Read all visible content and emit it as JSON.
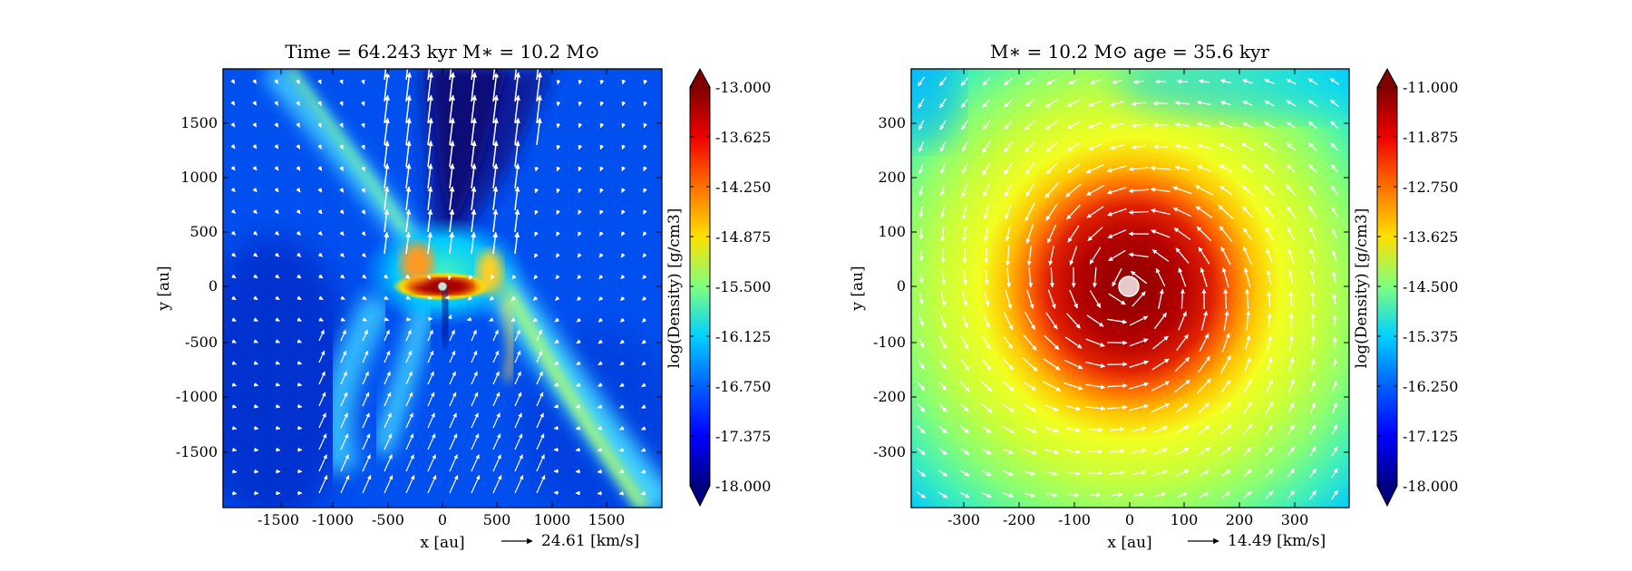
{
  "chart_data": [
    {
      "type": "heatmap",
      "title": "Time = 64.243 kyr    M∗ = 10.2 M⊙",
      "xlabel": "x [au]",
      "ylabel": "y [au]",
      "xlim": [
        -2000,
        2000
      ],
      "ylim": [
        -2000,
        2000
      ],
      "xticks": [
        -1500,
        -1000,
        -500,
        0,
        500,
        1000,
        1500
      ],
      "yticks": [
        1500,
        1000,
        500,
        0,
        -500,
        -1000,
        -1500
      ],
      "xtick_labels": [
        "-1500",
        "-1000",
        "-500",
        "0",
        "500",
        "1000",
        "1500"
      ],
      "ytick_labels": [
        "1500",
        "1000",
        "500",
        "0",
        "-500",
        "-1000",
        "-1500"
      ],
      "colorbar_label": "log(Density) [g/cm3]",
      "colorbar_range": [
        -18.0,
        -13.0
      ],
      "colorbar_ticks": [
        "-13.000",
        "-13.625",
        "-14.250",
        "-14.875",
        "-15.500",
        "-16.125",
        "-16.750",
        "-17.375",
        "-18.000"
      ],
      "reference_arrow_label": "24.61 [km/s]",
      "reference_speed_kms": 24.61,
      "structure": "bipolar outflow cavity along +y, dense disk at center, diagonal filaments",
      "grid": false
    },
    {
      "type": "heatmap",
      "title": "M∗ = 10.2 M⊙          age = 35.6 kyr",
      "xlabel": "x [au]",
      "ylabel": "y [au]",
      "xlim": [
        -400,
        400
      ],
      "ylim": [
        -400,
        400
      ],
      "xticks": [
        -300,
        -200,
        -100,
        0,
        100,
        200,
        300
      ],
      "yticks": [
        300,
        200,
        100,
        0,
        -100,
        -200,
        -300
      ],
      "xtick_labels": [
        "-300",
        "-200",
        "-100",
        "0",
        "100",
        "200",
        "300"
      ],
      "ytick_labels": [
        "300",
        "200",
        "100",
        "0",
        "-100",
        "-200",
        "-300"
      ],
      "colorbar_label": "log(Density) [g/cm3]",
      "colorbar_range": [
        -18.0,
        -11.0
      ],
      "colorbar_ticks": [
        "-11.000",
        "-11.875",
        "-12.750",
        "-13.625",
        "-14.500",
        "-15.375",
        "-16.250",
        "-17.125",
        "-18.000"
      ],
      "reference_arrow_label": "14.49 [km/s]",
      "reference_speed_kms": 14.49,
      "structure": "rotating centrally condensed disk, counter-clockwise velocity field",
      "grid": false
    }
  ]
}
